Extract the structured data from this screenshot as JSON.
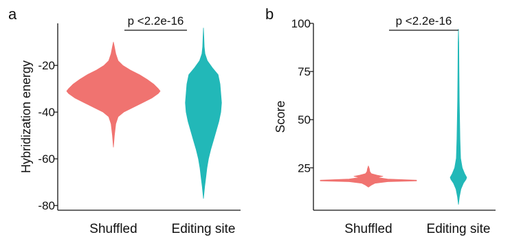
{
  "chart_data": [
    {
      "type": "violin",
      "panel_label": "a",
      "xlabel": "",
      "ylabel": "Hybridization energy",
      "categories": [
        "Shuffled",
        "Editing site"
      ],
      "yticks": [
        -20,
        -40,
        -60,
        -80
      ],
      "ylim": [
        -82,
        -2
      ],
      "colors": [
        "#F07370",
        "#22B8B8"
      ],
      "annotation": "p <2.2e-16",
      "series": [
        {
          "category": "Shuffled",
          "range": [
            -55,
            -10
          ],
          "density": [
            [
              -55,
              0.0
            ],
            [
              -50,
              0.02
            ],
            [
              -45,
              0.05
            ],
            [
              -42,
              0.1
            ],
            [
              -40,
              0.22
            ],
            [
              -38,
              0.42
            ],
            [
              -36,
              0.62
            ],
            [
              -34,
              0.82
            ],
            [
              -32,
              0.96
            ],
            [
              -31,
              1.0
            ],
            [
              -30,
              0.96
            ],
            [
              -28,
              0.86
            ],
            [
              -26,
              0.72
            ],
            [
              -24,
              0.56
            ],
            [
              -22,
              0.36
            ],
            [
              -20,
              0.2
            ],
            [
              -18,
              0.1
            ],
            [
              -15,
              0.05
            ],
            [
              -12,
              0.02
            ],
            [
              -10,
              0.0
            ]
          ]
        },
        {
          "category": "Editing site",
          "range": [
            -77,
            -4
          ],
          "density": [
            [
              -77,
              0.0
            ],
            [
              -72,
              0.06
            ],
            [
              -68,
              0.12
            ],
            [
              -64,
              0.18
            ],
            [
              -60,
              0.26
            ],
            [
              -56,
              0.38
            ],
            [
              -52,
              0.52
            ],
            [
              -48,
              0.66
            ],
            [
              -44,
              0.8
            ],
            [
              -40,
              0.9
            ],
            [
              -36,
              0.94
            ],
            [
              -32,
              0.9
            ],
            [
              -28,
              0.86
            ],
            [
              -24,
              0.76
            ],
            [
              -21,
              0.46
            ],
            [
              -18,
              0.2
            ],
            [
              -15,
              0.08
            ],
            [
              -12,
              0.04
            ],
            [
              -8,
              0.02
            ],
            [
              -4,
              0.0
            ]
          ]
        }
      ]
    },
    {
      "type": "violin",
      "panel_label": "b",
      "xlabel": "",
      "ylabel": "Score",
      "categories": [
        "Shuffled",
        "Editing site"
      ],
      "yticks": [
        25,
        50,
        75,
        100
      ],
      "ylim": [
        3,
        100
      ],
      "colors": [
        "#F07370",
        "#22B8B8"
      ],
      "annotation": "p <2.2e-16",
      "series": [
        {
          "category": "Shuffled",
          "range": [
            15,
            26
          ],
          "density": [
            [
              15,
              0.0
            ],
            [
              16,
              0.06
            ],
            [
              17,
              0.14
            ],
            [
              17.8,
              0.4
            ],
            [
              18.2,
              1.0
            ],
            [
              18.6,
              1.0
            ],
            [
              19.2,
              0.4
            ],
            [
              20.0,
              0.18
            ],
            [
              20.6,
              0.3
            ],
            [
              21.2,
              0.18
            ],
            [
              22.0,
              0.06
            ],
            [
              23.0,
              0.03
            ],
            [
              24.5,
              0.02
            ],
            [
              26,
              0.0
            ]
          ]
        },
        {
          "category": "Editing site",
          "range": [
            6,
            97
          ],
          "density": [
            [
              6,
              0.0
            ],
            [
              10,
              0.12
            ],
            [
              14,
              0.3
            ],
            [
              17,
              0.6
            ],
            [
              19,
              0.92
            ],
            [
              20,
              1.0
            ],
            [
              22,
              0.74
            ],
            [
              25,
              0.46
            ],
            [
              30,
              0.26
            ],
            [
              40,
              0.18
            ],
            [
              50,
              0.14
            ],
            [
              60,
              0.1
            ],
            [
              75,
              0.07
            ],
            [
              90,
              0.04
            ],
            [
              97,
              0.0
            ]
          ]
        }
      ]
    }
  ]
}
